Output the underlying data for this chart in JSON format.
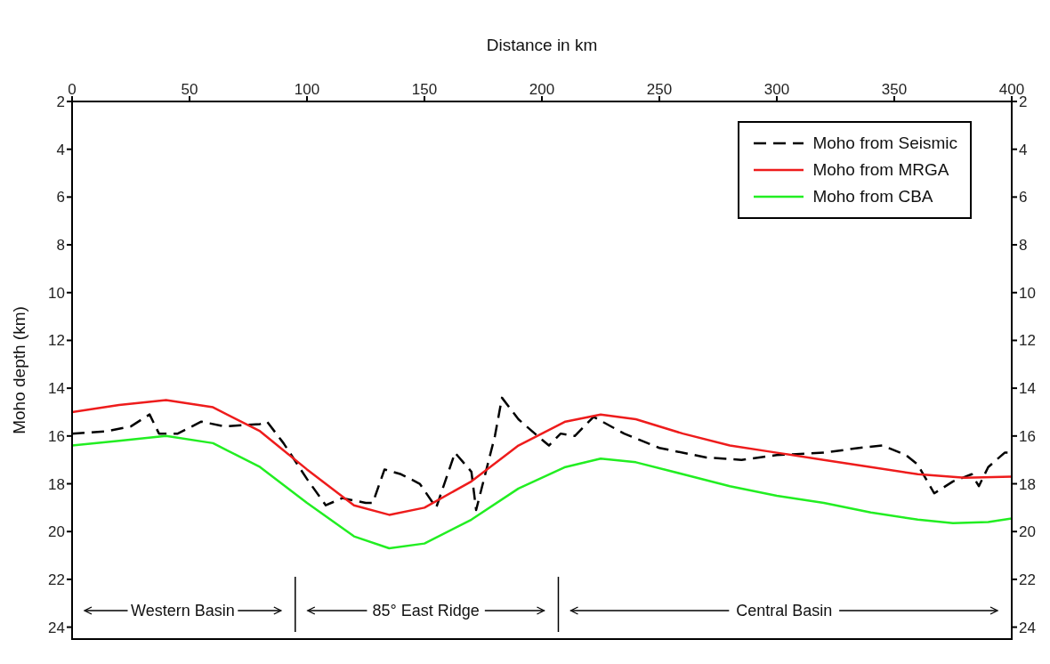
{
  "chart_data": {
    "type": "line",
    "xlabel": "Distance in km",
    "ylabel": "Moho depth  (km)",
    "xlim": [
      0,
      400
    ],
    "xticks": [
      0,
      50,
      100,
      150,
      200,
      250,
      300,
      350,
      400
    ],
    "ylim": [
      24.5,
      2
    ],
    "yticks": [
      2,
      4,
      6,
      8,
      10,
      12,
      14,
      16,
      18,
      20,
      22,
      24
    ],
    "y2lim": [
      24.5,
      2
    ],
    "y2ticks": [
      2,
      4,
      6,
      8,
      10,
      12,
      14,
      16,
      18,
      20,
      22,
      24
    ],
    "legend": "top right",
    "grid": false,
    "marker": "none",
    "series": [
      {
        "name": "Moho from Seismic",
        "color": "#000000",
        "line_style": "dashed",
        "x": [
          0,
          15,
          25,
          33,
          37,
          45,
          55,
          65,
          80,
          83,
          90,
          100,
          108,
          115,
          125,
          128,
          133,
          140,
          148,
          155,
          163,
          170,
          172,
          180,
          183,
          190,
          197,
          203,
          208,
          214,
          222,
          235,
          250,
          270,
          285,
          300,
          320,
          335,
          345,
          355,
          360,
          367,
          375,
          383,
          386,
          390,
          397,
          400
        ],
        "values": [
          15.9,
          15.8,
          15.6,
          15.1,
          15.9,
          15.9,
          15.4,
          15.6,
          15.5,
          15.4,
          16.3,
          17.8,
          18.9,
          18.6,
          18.8,
          18.8,
          17.4,
          17.6,
          18.0,
          19.0,
          16.7,
          17.5,
          19.1,
          16.0,
          14.4,
          15.3,
          15.9,
          16.4,
          15.9,
          16.0,
          15.2,
          15.9,
          16.5,
          16.9,
          17.0,
          16.8,
          16.7,
          16.5,
          16.4,
          16.8,
          17.2,
          18.4,
          17.9,
          17.6,
          18.1,
          17.3,
          16.7,
          16.7
        ]
      },
      {
        "name": "Moho from MRGA",
        "color": "#ee1c1c",
        "line_style": "solid",
        "x": [
          0,
          20,
          40,
          60,
          80,
          100,
          120,
          135,
          150,
          170,
          190,
          210,
          225,
          240,
          260,
          280,
          300,
          320,
          340,
          360,
          380,
          400
        ],
        "values": [
          15.0,
          14.7,
          14.5,
          14.8,
          15.8,
          17.4,
          18.9,
          19.3,
          19.0,
          17.9,
          16.4,
          15.4,
          15.1,
          15.3,
          15.9,
          16.4,
          16.7,
          17.0,
          17.3,
          17.6,
          17.75,
          17.7
        ]
      },
      {
        "name": "Moho from CBA",
        "color": "#22ee22",
        "line_style": "solid",
        "x": [
          0,
          20,
          40,
          60,
          80,
          100,
          120,
          135,
          150,
          170,
          190,
          210,
          225,
          240,
          260,
          280,
          300,
          320,
          340,
          360,
          375,
          390,
          400
        ],
        "values": [
          16.4,
          16.2,
          16.0,
          16.3,
          17.3,
          18.8,
          20.2,
          20.7,
          20.5,
          19.5,
          18.2,
          17.3,
          16.95,
          17.1,
          17.6,
          18.1,
          18.5,
          18.8,
          19.2,
          19.5,
          19.65,
          19.6,
          19.45
        ]
      }
    ],
    "ref_lines": [
      {
        "axis": "x",
        "value": 95
      },
      {
        "axis": "x",
        "value": 207
      }
    ],
    "annotations": [
      "Western Basin",
      "85° East Ridge",
      "Central Basin"
    ]
  }
}
